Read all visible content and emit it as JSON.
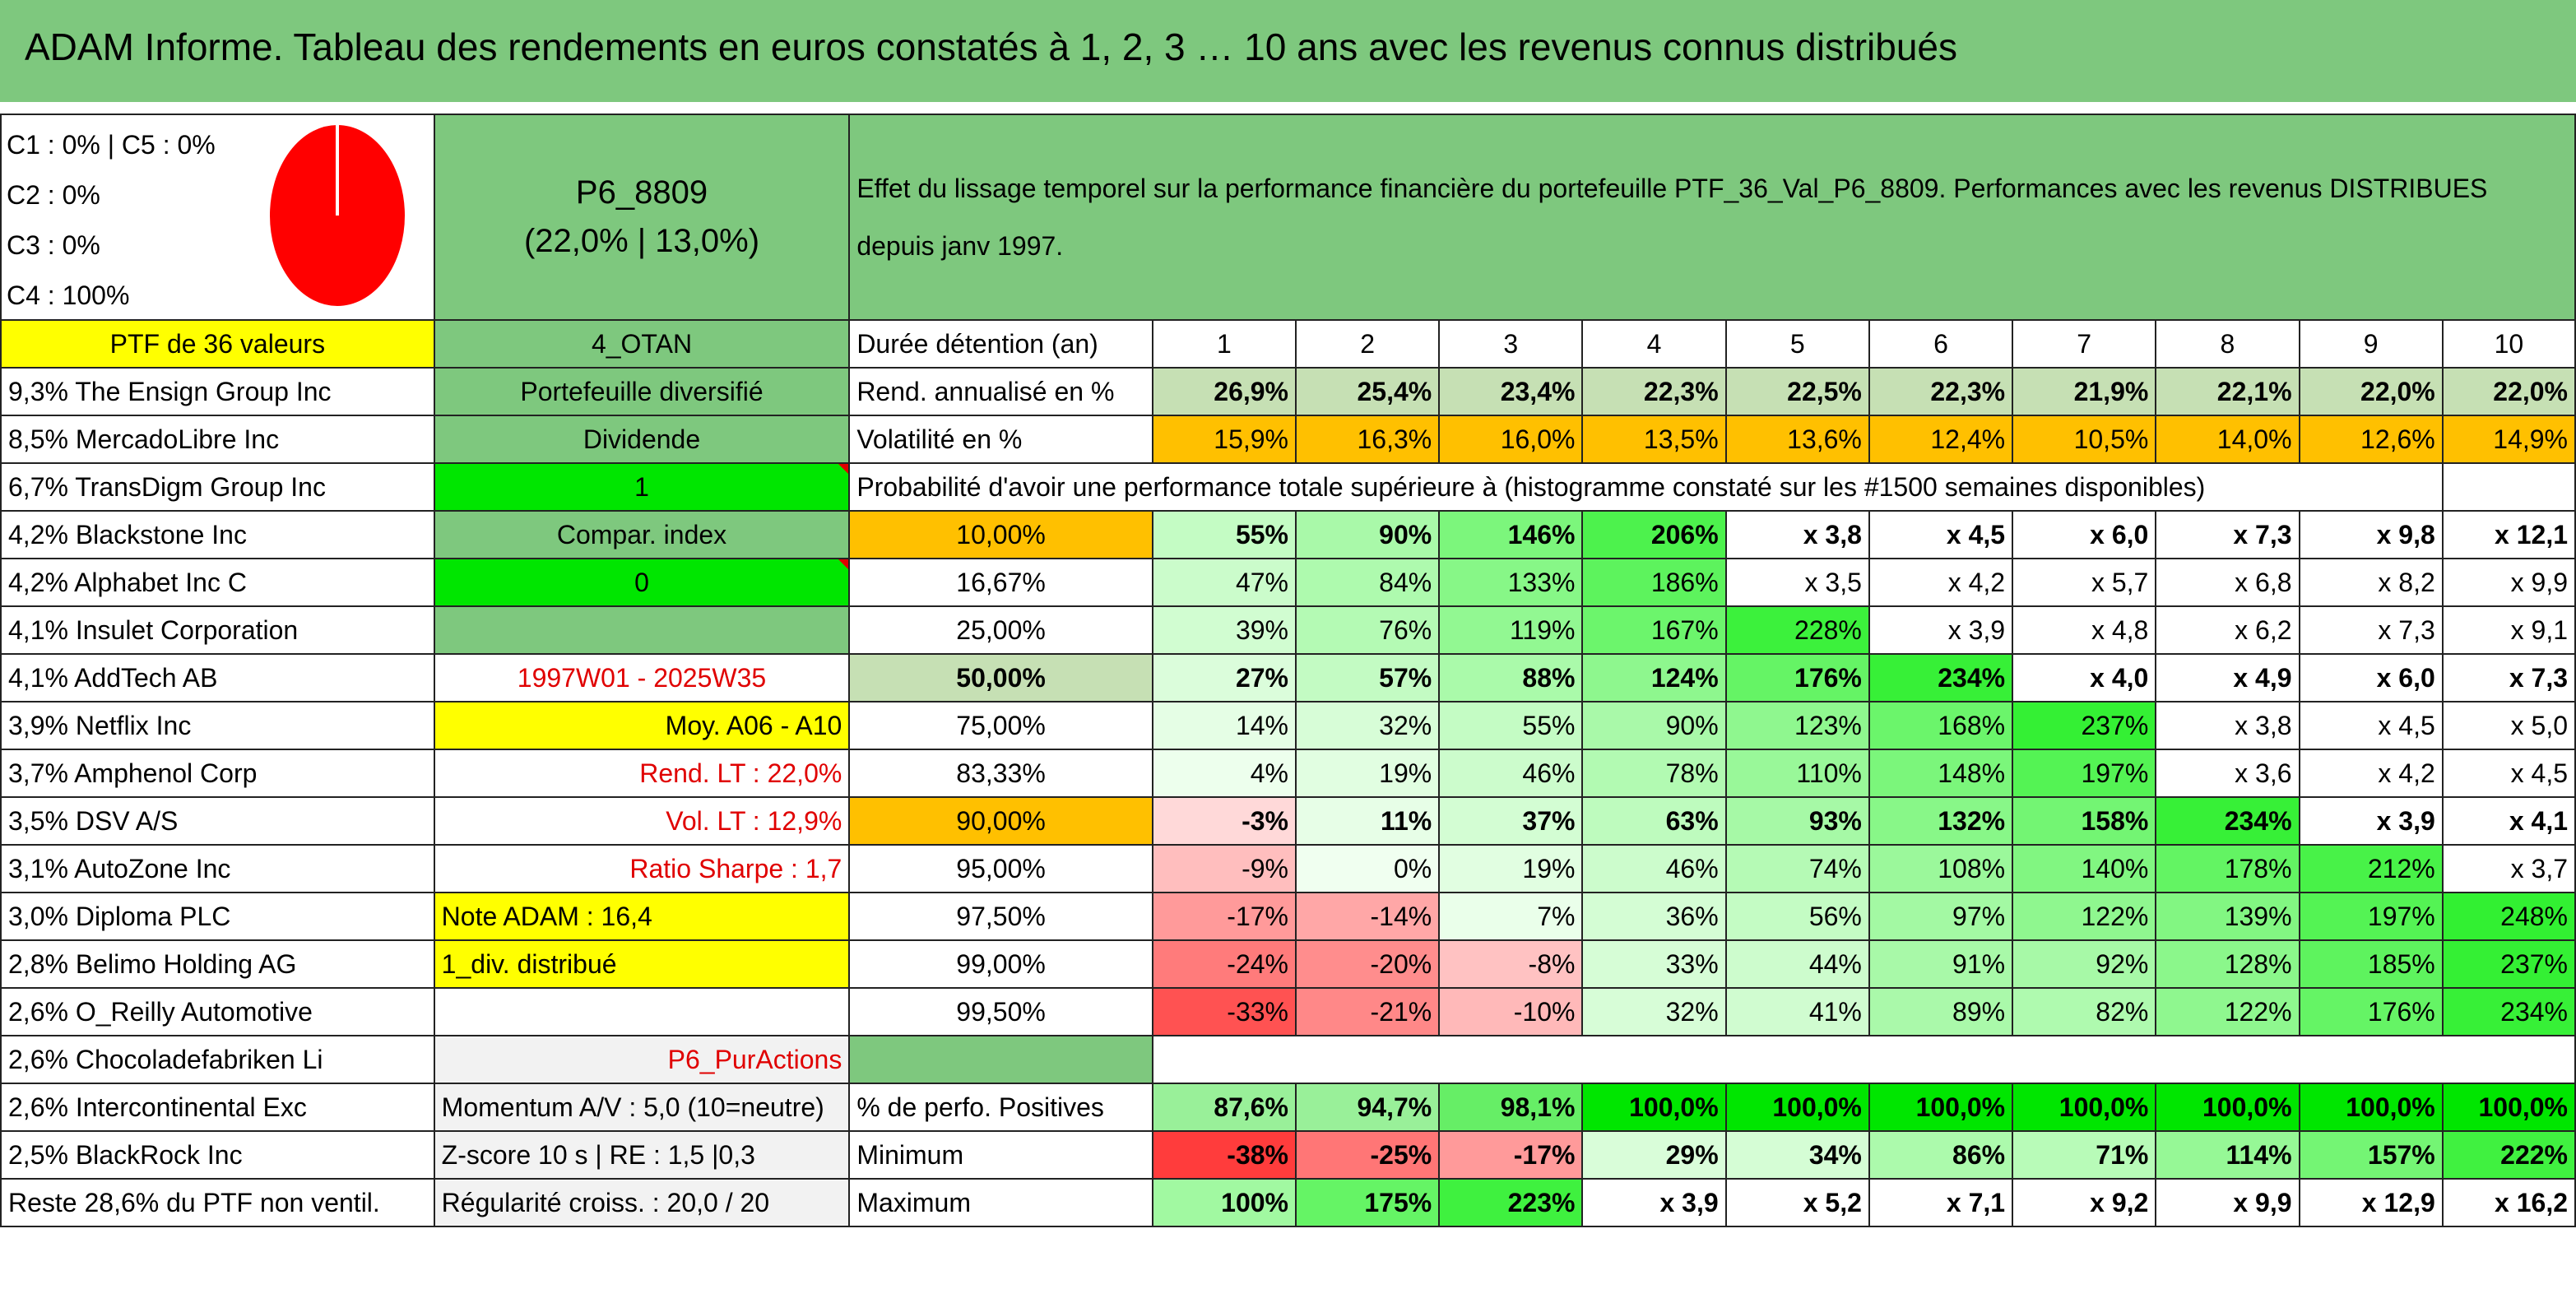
{
  "title": "ADAM Informe. Tableau des rendements en euros constatés à 1, 2, 3 … 10 ans avec les revenus connus distribués",
  "allocation": {
    "line1": "C1 : 0% | C5 : 0%",
    "line2": "C2 : 0%",
    "line3": "C3 : 0%",
    "line4": "C4 : 100%",
    "pie_color": "#ff0000"
  },
  "portfolio": {
    "code": "P6_8809",
    "ratios": "(22,0% | 13,0%)",
    "description": "Effet du lissage temporel sur la performance financière du portefeuille PTF_36_Val_P6_8809. Performances avec les revenus DISTRIBUES depuis janv 1997."
  },
  "left_header": "PTF de 36 valeurs",
  "holdings": [
    "9,3% The Ensign Group Inc",
    "8,5% MercadoLibre Inc",
    "6,7% TransDigm Group Inc",
    "4,2% Blackstone Inc",
    "4,2% Alphabet Inc C",
    "4,1% Insulet Corporation",
    "4,1% AddTech AB",
    "3,9% Netflix Inc",
    "3,7% Amphenol Corp",
    "3,5% DSV A/S",
    "3,1% AutoZone Inc",
    "3,0% Diploma PLC",
    "2,8% Belimo Holding AG",
    "2,6% O_Reilly Automotive",
    "2,6% Chocoladefabriken Li",
    "2,6% Intercontinental Exc",
    "2,5% BlackRock Inc",
    "Reste 28,6% du PTF non ventil."
  ],
  "info": {
    "zone": "4_OTAN",
    "type": "Portefeuille diversifié",
    "style": "Dividende",
    "flag1": "1",
    "compar": "Compar. index",
    "flag2": "0",
    "period": "1997W01 - 2025W35",
    "moy": "Moy. A06 - A10",
    "rend_lt": "Rend. LT : 22,0%",
    "vol_lt": "Vol. LT : 12,9%",
    "sharpe": "Ratio Sharpe : 1,7",
    "note": "Note ADAM : 16,4",
    "div": "1_div. distribué",
    "purchase": "P6_PurActions",
    "momentum": "Momentum A/V : 5,0 (10=neutre)",
    "zscore": "Z-score 10 s | RE : 1,5 |0,3",
    "regularite": "Régularité croiss. : 20,0 / 20"
  },
  "perf": {
    "duree_label": "Durée détention (an)",
    "years": [
      "1",
      "2",
      "3",
      "4",
      "5",
      "6",
      "7",
      "8",
      "9",
      "10"
    ],
    "rend_label": "Rend. annualisé en %",
    "rend": [
      "26,9%",
      "25,4%",
      "23,4%",
      "22,3%",
      "22,5%",
      "22,3%",
      "21,9%",
      "22,1%",
      "22,0%",
      "22,0%"
    ],
    "vol_label": "Volatilité en %",
    "vol": [
      "15,9%",
      "16,3%",
      "16,0%",
      "13,5%",
      "13,6%",
      "12,4%",
      "10,5%",
      "14,0%",
      "12,6%",
      "14,9%"
    ],
    "proba_label": "Probabilité d'avoir une performance totale supérieure à (histogramme constaté sur les #1500 semaines disponibles)",
    "proba_rows": [
      {
        "p": "10,00%",
        "v": [
          "55%",
          "90%",
          "146%",
          "206%",
          "x 3,8",
          "x 4,5",
          "x 6,0",
          "x 7,3",
          "x 9,8",
          "x 12,1"
        ]
      },
      {
        "p": "16,67%",
        "v": [
          "47%",
          "84%",
          "133%",
          "186%",
          "x 3,5",
          "x 4,2",
          "x 5,7",
          "x 6,8",
          "x 8,2",
          "x 9,9"
        ]
      },
      {
        "p": "25,00%",
        "v": [
          "39%",
          "76%",
          "119%",
          "167%",
          "228%",
          "x 3,9",
          "x 4,8",
          "x 6,2",
          "x 7,3",
          "x 9,1"
        ]
      },
      {
        "p": "50,00%",
        "v": [
          "27%",
          "57%",
          "88%",
          "124%",
          "176%",
          "234%",
          "x 4,0",
          "x 4,9",
          "x 6,0",
          "x 7,3"
        ]
      },
      {
        "p": "75,00%",
        "v": [
          "14%",
          "32%",
          "55%",
          "90%",
          "123%",
          "168%",
          "237%",
          "x 3,8",
          "x 4,5",
          "x 5,0"
        ]
      },
      {
        "p": "83,33%",
        "v": [
          "4%",
          "19%",
          "46%",
          "78%",
          "110%",
          "148%",
          "197%",
          "x 3,6",
          "x 4,2",
          "x 4,5"
        ]
      },
      {
        "p": "90,00%",
        "v": [
          "-3%",
          "11%",
          "37%",
          "63%",
          "93%",
          "132%",
          "158%",
          "234%",
          "x 3,9",
          "x 4,1"
        ]
      },
      {
        "p": "95,00%",
        "v": [
          "-9%",
          "0%",
          "19%",
          "46%",
          "74%",
          "108%",
          "140%",
          "178%",
          "212%",
          "x 3,7"
        ]
      },
      {
        "p": "97,50%",
        "v": [
          "-17%",
          "-14%",
          "7%",
          "36%",
          "56%",
          "97%",
          "122%",
          "139%",
          "197%",
          "248%"
        ]
      },
      {
        "p": "99,00%",
        "v": [
          "-24%",
          "-20%",
          "-8%",
          "33%",
          "44%",
          "91%",
          "92%",
          "128%",
          "185%",
          "237%"
        ]
      },
      {
        "p": "99,50%",
        "v": [
          "-33%",
          "-21%",
          "-10%",
          "32%",
          "41%",
          "89%",
          "82%",
          "122%",
          "176%",
          "234%"
        ]
      }
    ],
    "pos_label": "% de perfo. Positives",
    "pos": [
      "87,6%",
      "94,7%",
      "98,1%",
      "100,0%",
      "100,0%",
      "100,0%",
      "100,0%",
      "100,0%",
      "100,0%",
      "100,0%"
    ],
    "min_label": "Minimum",
    "min": [
      "-38%",
      "-25%",
      "-17%",
      "29%",
      "34%",
      "86%",
      "71%",
      "114%",
      "157%",
      "222%"
    ],
    "max_label": "Maximum",
    "max": [
      "100%",
      "175%",
      "223%",
      "x 3,9",
      "x 5,2",
      "x 7,1",
      "x 9,2",
      "x 9,9",
      "x 12,9",
      "x 16,2"
    ]
  },
  "colors": {
    "header_green": "#7ec87e",
    "yellow": "#ffff00",
    "orange": "#ffc000",
    "bright_green": "#00e600",
    "red_text": "#e00000"
  }
}
